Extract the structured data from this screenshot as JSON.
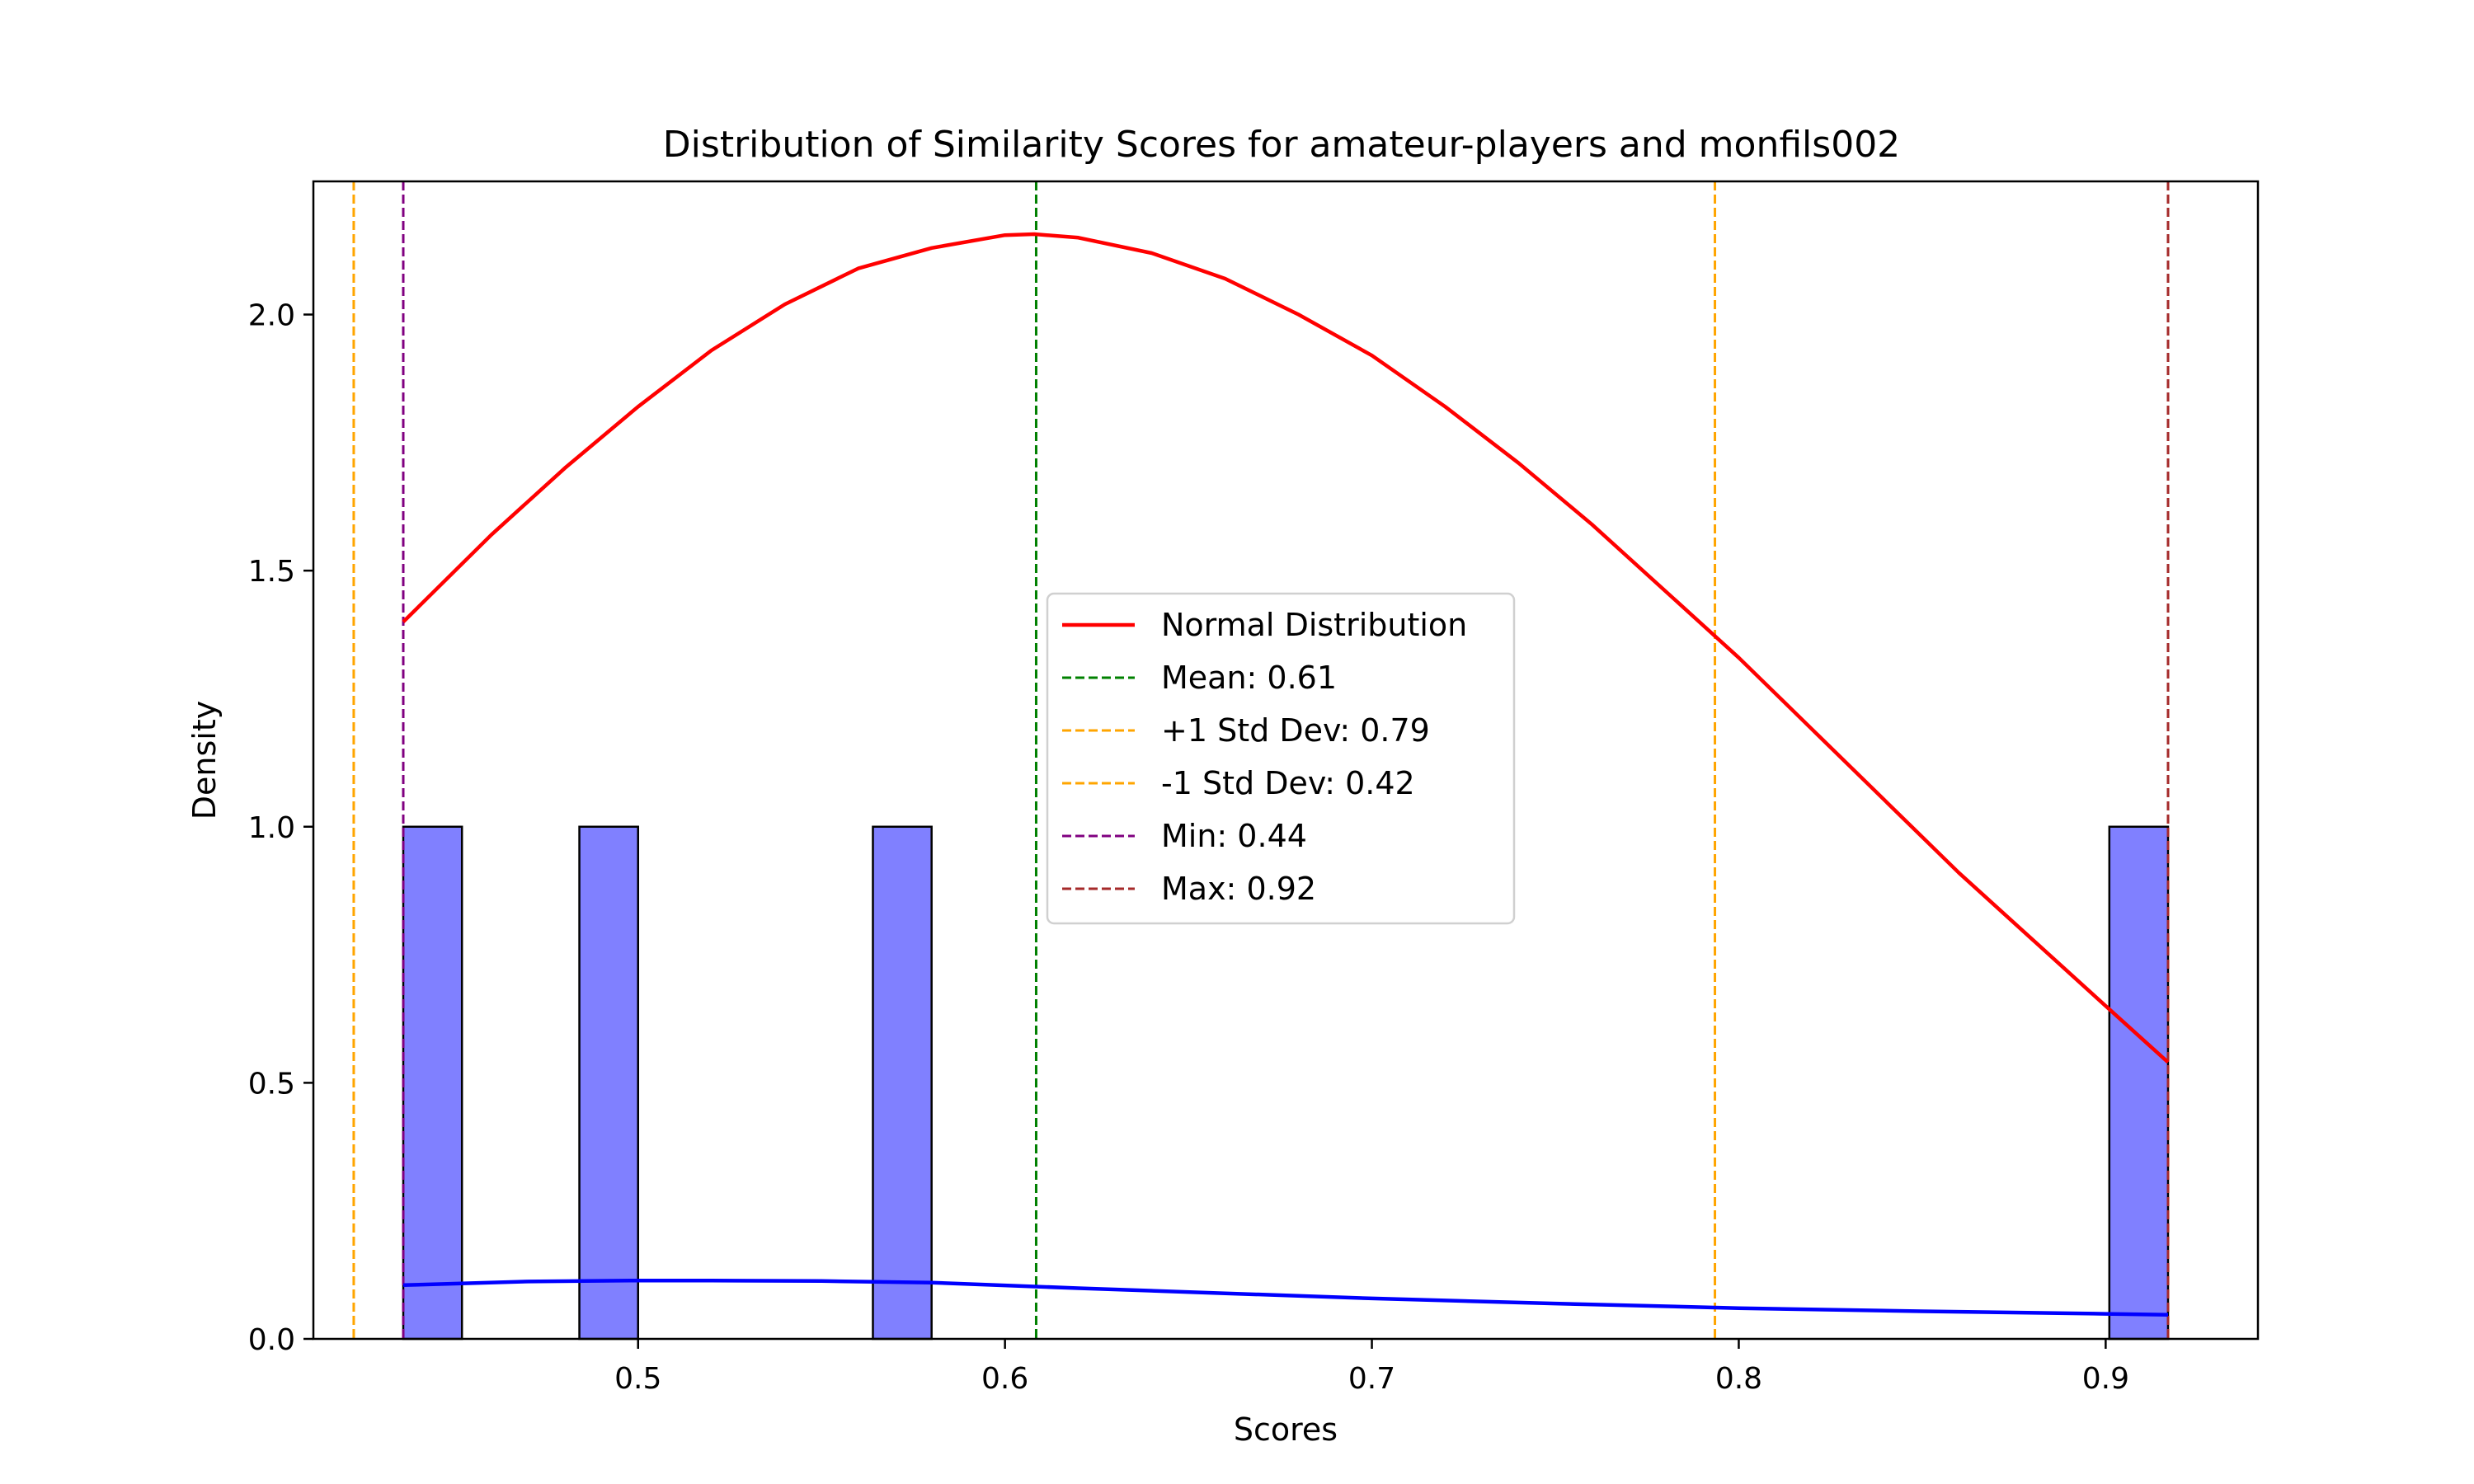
{
  "chart_data": {
    "type": "bar",
    "title": "Distribution of Similarity Scores for amateur-players and monfils002",
    "xlabel": "Scores",
    "ylabel": "Density",
    "xlim": [
      0.4115,
      0.9415
    ],
    "ylim": [
      0,
      2.26
    ],
    "xticks": [
      0.5,
      0.6,
      0.7,
      0.8,
      0.9
    ],
    "yticks": [
      0.0,
      0.5,
      1.0,
      1.5,
      2.0
    ],
    "xtick_labels": [
      "0.5",
      "0.6",
      "0.7",
      "0.8",
      "0.9"
    ],
    "ytick_labels": [
      "0.0",
      "0.5",
      "1.0",
      "1.5",
      "2.0"
    ],
    "grid": false,
    "legend_position": "center",
    "histogram": {
      "color": "#8080ff",
      "edge_color": "#000000",
      "bins": [
        {
          "start": 0.436,
          "end": 0.452,
          "value": 1.0
        },
        {
          "start": 0.484,
          "end": 0.5,
          "value": 1.0
        },
        {
          "start": 0.564,
          "end": 0.58,
          "value": 1.0
        },
        {
          "start": 0.901,
          "end": 0.917,
          "value": 1.0
        }
      ]
    },
    "series": [
      {
        "name": "Normal Distribution",
        "kind": "curve",
        "color": "#ff0000",
        "x": [
          0.436,
          0.46,
          0.48,
          0.5,
          0.52,
          0.54,
          0.56,
          0.58,
          0.6,
          0.608,
          0.62,
          0.64,
          0.66,
          0.68,
          0.7,
          0.72,
          0.74,
          0.76,
          0.78,
          0.8,
          0.82,
          0.84,
          0.86,
          0.88,
          0.9,
          0.917
        ],
        "y": [
          1.4,
          1.57,
          1.7,
          1.82,
          1.93,
          2.02,
          2.09,
          2.13,
          2.155,
          2.157,
          2.15,
          2.12,
          2.07,
          2.0,
          1.92,
          1.82,
          1.71,
          1.59,
          1.46,
          1.33,
          1.19,
          1.05,
          0.91,
          0.78,
          0.65,
          0.54
        ]
      },
      {
        "name": "",
        "kind": "kde",
        "color": "#0000ff",
        "x": [
          0.436,
          0.47,
          0.5,
          0.52,
          0.55,
          0.58,
          0.62,
          0.66,
          0.7,
          0.75,
          0.8,
          0.85,
          0.9,
          0.917
        ],
        "y": [
          0.105,
          0.112,
          0.114,
          0.114,
          0.113,
          0.11,
          0.099,
          0.089,
          0.079,
          0.069,
          0.06,
          0.054,
          0.049,
          0.047
        ]
      }
    ],
    "reference_lines": [
      {
        "name": "Mean: 0.61",
        "x": 0.6085,
        "color": "#008000"
      },
      {
        "name": "+1 Std Dev: 0.79",
        "x": 0.7935,
        "color": "#ffa500"
      },
      {
        "name": "-1 Std Dev: 0.42",
        "x": 0.4225,
        "color": "#ffa500"
      },
      {
        "name": "Min: 0.44",
        "x": 0.436,
        "color": "#800080"
      },
      {
        "name": "Max: 0.92",
        "x": 0.917,
        "color": "#a52a2a"
      }
    ]
  }
}
